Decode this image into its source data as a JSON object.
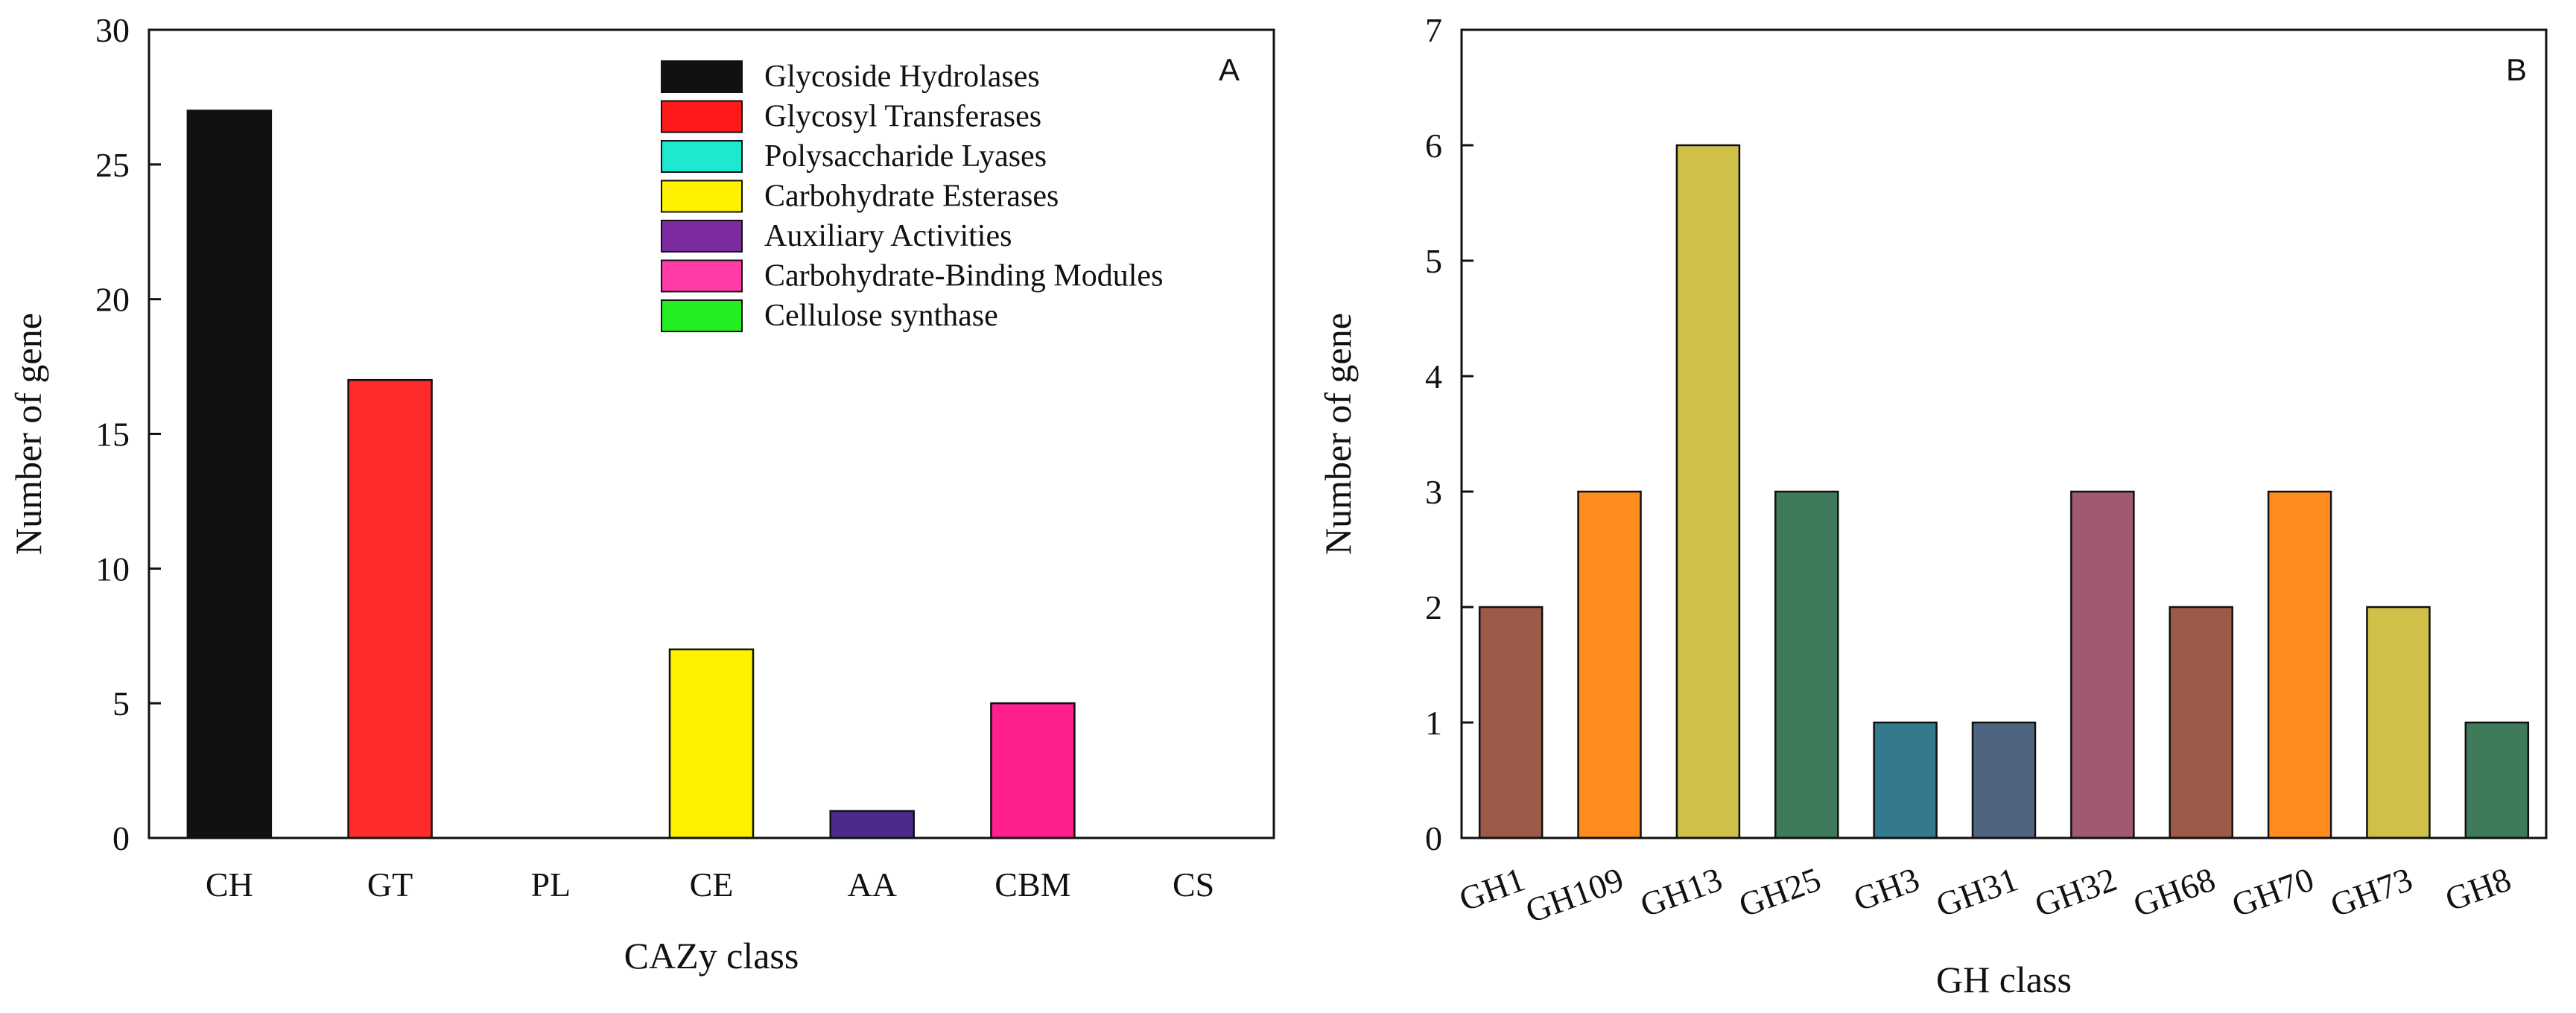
{
  "chart_data": [
    {
      "panel": "A",
      "type": "bar",
      "xlabel": "CAZy class",
      "ylabel": "Number of gene",
      "ylim": [
        0,
        30
      ],
      "yticks": [
        0,
        5,
        10,
        15,
        20,
        25,
        30
      ],
      "categories": [
        "CH",
        "GT",
        "PL",
        "CE",
        "AA",
        "CBM",
        "CS"
      ],
      "values": [
        27,
        17,
        0,
        7,
        1,
        5,
        0
      ],
      "colors": [
        "#111111",
        "#ff2a2a",
        "#1de9d0",
        "#fff200",
        "#4b2a8a",
        "#ff1f8e",
        "#22ee22"
      ],
      "legend": [
        {
          "label": "Glycoside Hydrolases",
          "color": "#111111"
        },
        {
          "label": "Glycosyl Transferases",
          "color": "#ff1a1a"
        },
        {
          "label": "Polysaccharide Lyases",
          "color": "#1de9d0"
        },
        {
          "label": "Carbohydrate Esterases",
          "color": "#fff200"
        },
        {
          "label": "Auxiliary Activities",
          "color": "#7b2aa0"
        },
        {
          "label": "Carbohydrate-Binding Modules",
          "color": "#ff3ba8"
        },
        {
          "label": "Cellulose synthase",
          "color": "#22ee22"
        }
      ],
      "legend_position": "top-right"
    },
    {
      "panel": "B",
      "type": "bar",
      "xlabel": "GH class",
      "ylabel": "Number of gene",
      "ylim": [
        0,
        7
      ],
      "yticks": [
        0,
        1,
        2,
        3,
        4,
        5,
        6,
        7
      ],
      "categories": [
        "GH1",
        "GH109",
        "GH13",
        "GH25",
        "GH3",
        "GH31",
        "GH32",
        "GH68",
        "GH70",
        "GH73",
        "GH8"
      ],
      "values": [
        2,
        3,
        6,
        3,
        1,
        1,
        3,
        2,
        3,
        2,
        1
      ],
      "colors": [
        "#9e5a48",
        "#ff8c1f",
        "#cfc04a",
        "#3f7a5a",
        "#327a8c",
        "#4f6480",
        "#a05a70",
        "#9e5a48",
        "#ff8c1f",
        "#cfc04a",
        "#3f7a5a"
      ]
    }
  ]
}
